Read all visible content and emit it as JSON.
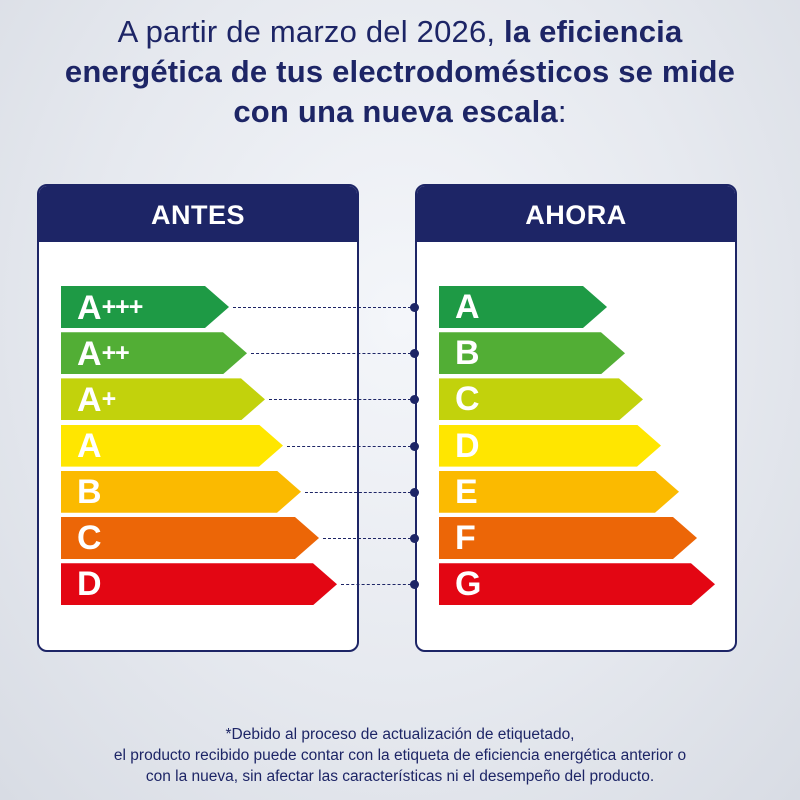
{
  "headline": {
    "regular": "A partir de marzo del 2026, ",
    "bold": "la eficiencia energética de tus electrodomésticos se mide con una nueva escala",
    "suffix": ":"
  },
  "panels": {
    "before": {
      "title": "ANTES",
      "ratings": [
        {
          "letter": "A",
          "plus": "+++",
          "color": "#1e9a45"
        },
        {
          "letter": "A",
          "plus": "++",
          "color": "#52ae35"
        },
        {
          "letter": "A",
          "plus": "+",
          "color": "#c2d20c"
        },
        {
          "letter": "A",
          "plus": "",
          "color": "#ffe600"
        },
        {
          "letter": "B",
          "plus": "",
          "color": "#fbba00"
        },
        {
          "letter": "C",
          "plus": "",
          "color": "#ec6607"
        },
        {
          "letter": "D",
          "plus": "",
          "color": "#e30613"
        }
      ]
    },
    "after": {
      "title": "AHORA",
      "ratings": [
        {
          "letter": "A",
          "plus": "",
          "color": "#1e9a45"
        },
        {
          "letter": "B",
          "plus": "",
          "color": "#52ae35"
        },
        {
          "letter": "C",
          "plus": "",
          "color": "#c2d20c"
        },
        {
          "letter": "D",
          "plus": "",
          "color": "#ffe600"
        },
        {
          "letter": "E",
          "plus": "",
          "color": "#fbba00"
        },
        {
          "letter": "F",
          "plus": "",
          "color": "#ec6607"
        },
        {
          "letter": "G",
          "plus": "",
          "color": "#e30613"
        }
      ]
    }
  },
  "footnote": {
    "line1": "*Debido al proceso de actualización de etiquetado,",
    "line2": "el producto recibido puede contar con la etiqueta de eficiencia energética anterior o",
    "line3": "con la nueva, sin afectar las características ni el desempeño del producto."
  },
  "colors": {
    "navy": "#1d2566"
  }
}
